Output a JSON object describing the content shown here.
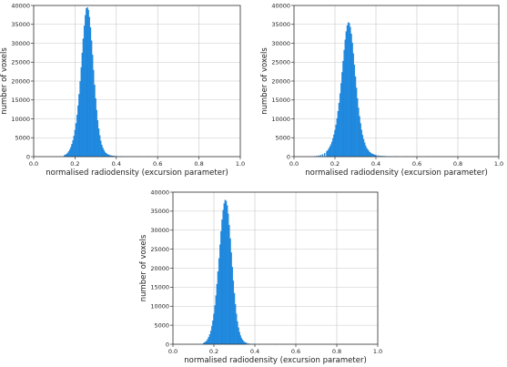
{
  "colors": {
    "bar": "#1f8fe8",
    "bar_edge": "#1673c4",
    "grid": "#c8c8c8"
  },
  "chart_data": [
    {
      "type": "bar",
      "xlabel": "normalised radiodensity (excursion parameter)",
      "ylabel": "number of voxels",
      "xlim": [
        0.0,
        1.0
      ],
      "ylim": [
        0,
        40000
      ],
      "xticks": [
        "0.0",
        "0.2",
        "0.4",
        "0.6",
        "0.8",
        "1.0"
      ],
      "yticks": [
        "0",
        "5000",
        "10000",
        "15000",
        "20000",
        "25000",
        "30000",
        "35000",
        "40000"
      ],
      "grid": true,
      "bin_width": 0.005,
      "x": [
        0.15,
        0.155,
        0.16,
        0.165,
        0.17,
        0.175,
        0.18,
        0.185,
        0.19,
        0.195,
        0.2,
        0.205,
        0.21,
        0.215,
        0.22,
        0.225,
        0.23,
        0.235,
        0.24,
        0.245,
        0.25,
        0.255,
        0.26,
        0.265,
        0.27,
        0.275,
        0.28,
        0.285,
        0.29,
        0.295,
        0.3,
        0.305,
        0.31,
        0.315,
        0.32,
        0.325,
        0.33,
        0.335,
        0.34,
        0.345,
        0.35,
        0.355,
        0.36,
        0.365,
        0.37,
        0.375,
        0.38,
        0.385,
        0.39,
        0.395,
        0.4,
        0.41,
        0.42,
        0.43,
        0.45,
        0.47,
        0.5,
        0.55,
        0.6
      ],
      "values": [
        400,
        500,
        700,
        1000,
        1400,
        1900,
        2500,
        3300,
        4300,
        5500,
        7000,
        8800,
        11000,
        13500,
        16500,
        19900,
        23600,
        27400,
        31200,
        34600,
        37400,
        39200,
        39500,
        38800,
        36900,
        34200,
        30700,
        26900,
        22900,
        19000,
        15400,
        12300,
        9600,
        7400,
        5600,
        4200,
        3100,
        2300,
        1700,
        1250,
        950,
        700,
        550,
        430,
        340,
        270,
        220,
        180,
        150,
        125,
        105,
        80,
        60,
        45,
        30,
        20,
        12,
        6,
        3
      ]
    },
    {
      "type": "bar",
      "xlabel": "normalised radiodensity (excursion parameter)",
      "ylabel": "number of voxels",
      "xlim": [
        0.0,
        1.0
      ],
      "ylim": [
        0,
        40000
      ],
      "xticks": [
        "0.0",
        "0.2",
        "0.4",
        "0.6",
        "0.8",
        "1.0"
      ],
      "yticks": [
        "0",
        "5000",
        "10000",
        "15000",
        "20000",
        "25000",
        "30000",
        "35000",
        "40000"
      ],
      "grid": true,
      "bin_width": 0.005,
      "x": [
        0.1,
        0.11,
        0.12,
        0.13,
        0.14,
        0.15,
        0.16,
        0.165,
        0.17,
        0.175,
        0.18,
        0.185,
        0.19,
        0.195,
        0.2,
        0.205,
        0.21,
        0.215,
        0.22,
        0.225,
        0.23,
        0.235,
        0.24,
        0.245,
        0.25,
        0.255,
        0.26,
        0.265,
        0.27,
        0.275,
        0.28,
        0.285,
        0.29,
        0.295,
        0.3,
        0.305,
        0.31,
        0.315,
        0.32,
        0.325,
        0.33,
        0.335,
        0.34,
        0.345,
        0.35,
        0.355,
        0.36,
        0.365,
        0.37,
        0.375,
        0.38,
        0.385,
        0.39,
        0.395,
        0.4,
        0.41,
        0.42,
        0.43,
        0.44,
        0.45,
        0.47,
        0.5,
        0.55,
        0.6,
        0.65,
        0.7
      ],
      "values": [
        100,
        150,
        250,
        400,
        600,
        900,
        1400,
        1700,
        2100,
        2600,
        3200,
        3900,
        4800,
        5800,
        7000,
        8400,
        10100,
        12000,
        14200,
        16700,
        19400,
        22300,
        25300,
        28200,
        30900,
        33100,
        34700,
        35500,
        35300,
        34300,
        32500,
        30100,
        27300,
        24300,
        21200,
        18200,
        15400,
        12900,
        10700,
        8800,
        7100,
        5700,
        4600,
        3700,
        2900,
        2300,
        1850,
        1500,
        1200,
        980,
        800,
        660,
        550,
        460,
        390,
        300,
        230,
        180,
        140,
        110,
        70,
        40,
        20,
        10,
        6,
        3
      ]
    },
    {
      "type": "bar",
      "xlabel": "normalised radiodensity (excursion parameter)",
      "ylabel": "number of voxels",
      "xlim": [
        0.0,
        1.0
      ],
      "ylim": [
        0,
        40000
      ],
      "xticks": [
        "0.0",
        "0.2",
        "0.4",
        "0.6",
        "0.8",
        "1.0"
      ],
      "yticks": [
        "0",
        "5000",
        "10000",
        "15000",
        "20000",
        "25000",
        "30000",
        "35000",
        "40000"
      ],
      "grid": true,
      "bin_width": 0.005,
      "x": [
        0.15,
        0.155,
        0.16,
        0.165,
        0.17,
        0.175,
        0.18,
        0.185,
        0.19,
        0.195,
        0.2,
        0.205,
        0.21,
        0.215,
        0.22,
        0.225,
        0.23,
        0.235,
        0.24,
        0.245,
        0.25,
        0.255,
        0.26,
        0.265,
        0.27,
        0.275,
        0.28,
        0.285,
        0.29,
        0.295,
        0.3,
        0.305,
        0.31,
        0.315,
        0.32,
        0.325,
        0.33,
        0.335,
        0.34,
        0.345,
        0.35,
        0.355,
        0.36,
        0.37,
        0.38,
        0.39,
        0.4,
        0.42,
        0.45,
        0.5
      ],
      "values": [
        300,
        450,
        650,
        950,
        1350,
        1900,
        2600,
        3500,
        4700,
        6200,
        8000,
        10200,
        12800,
        15800,
        19100,
        22600,
        26200,
        29700,
        32800,
        35300,
        37000,
        37900,
        37700,
        36500,
        34300,
        31300,
        27800,
        24100,
        20300,
        16700,
        13400,
        10500,
        8000,
        6000,
        4400,
        3200,
        2300,
        1650,
        1150,
        800,
        560,
        390,
        280,
        150,
        80,
        45,
        25,
        12,
        5,
        2
      ]
    }
  ]
}
